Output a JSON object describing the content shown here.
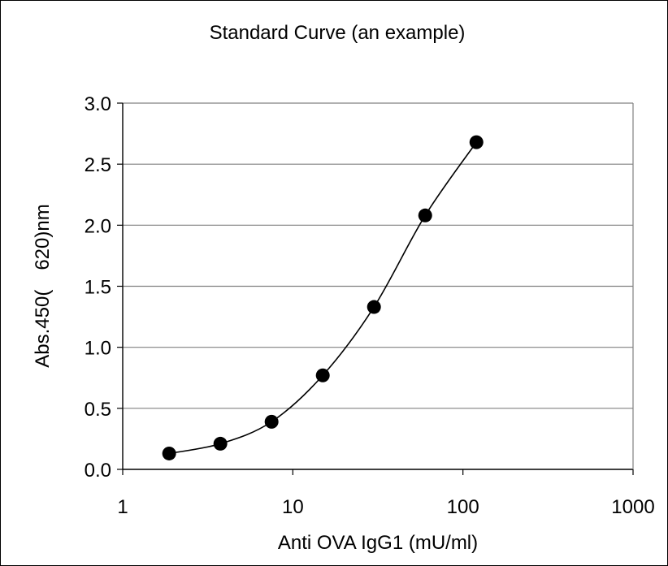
{
  "chart_data": {
    "type": "scatter",
    "title": "Standard Curve (an example)",
    "xlabel": "Anti OVA IgG1 (mU/ml)",
    "ylabel": "Abs.450(　620)nm",
    "x_scale": "log",
    "xlim": [
      1,
      1000
    ],
    "ylim": [
      0,
      3.0
    ],
    "x_ticks": [
      "1",
      "10",
      "100",
      "1000"
    ],
    "y_ticks": [
      "0.0",
      "0.5",
      "1.0",
      "1.5",
      "2.0",
      "2.5",
      "3.0"
    ],
    "grid": "horizontal",
    "legend": "none",
    "series": [
      {
        "x": [
          1.875,
          3.75,
          7.5,
          15,
          30,
          60,
          120
        ],
        "y": [
          0.13,
          0.21,
          0.39,
          0.77,
          1.33,
          2.08,
          2.68
        ]
      }
    ],
    "colors": {
      "marker": "#000000",
      "line": "#000000",
      "grid": "#808080"
    }
  }
}
